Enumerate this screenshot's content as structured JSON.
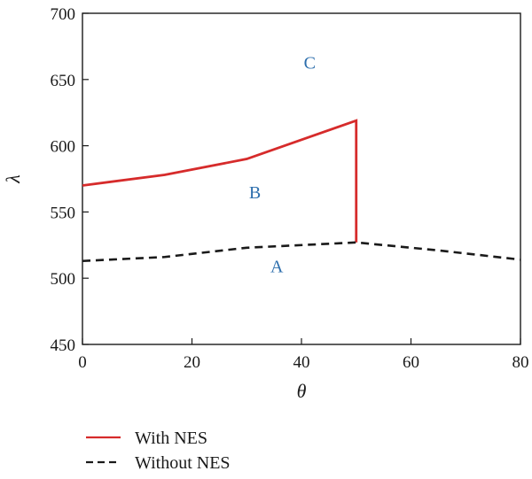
{
  "chart_data": {
    "type": "line",
    "xlabel": "θ",
    "ylabel": "λ",
    "xlim": [
      0,
      80
    ],
    "ylim": [
      450,
      700
    ],
    "xticks": [
      0,
      20,
      40,
      60,
      80
    ],
    "yticks": [
      450,
      500,
      550,
      600,
      650,
      700
    ],
    "grid": false,
    "legend_position": "bottom-left, below plot",
    "series": [
      {
        "name": "With NES",
        "color": "#d62b2b",
        "style": "solid",
        "x": [
          0,
          15,
          30,
          50,
          50
        ],
        "y": [
          570,
          578,
          590,
          619,
          527
        ]
      },
      {
        "name": "Without NES",
        "color": "#1a1a1a",
        "style": "dashed",
        "x": [
          0,
          15,
          30,
          50,
          65,
          80
        ],
        "y": [
          513,
          516,
          523,
          527,
          521,
          514
        ]
      }
    ],
    "annotations": [
      {
        "text": "C",
        "x": 41.5,
        "y": 663,
        "color": "#2e6fad"
      },
      {
        "text": "B",
        "x": 31.5,
        "y": 565,
        "color": "#2e6fad"
      },
      {
        "text": "A",
        "x": 35.5,
        "y": 509,
        "color": "#2e6fad"
      }
    ]
  }
}
